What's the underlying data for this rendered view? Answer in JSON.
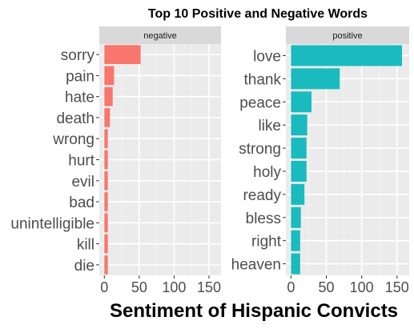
{
  "chart_data": {
    "type": "bar",
    "orientation": "horizontal",
    "title": "Top 10 Positive and Negative Words",
    "xlabel": "Sentiment of Hispanic Convicts",
    "ylabel": "",
    "xlim": [
      0,
      160
    ],
    "xticks": [
      "0",
      "50",
      "100",
      "150"
    ],
    "grid": true,
    "legend": "none",
    "panels": [
      {
        "name": "negative",
        "color": "#F8766D",
        "categories": [
          "sorry",
          "pain",
          "hate",
          "death",
          "wrong",
          "hurt",
          "evil",
          "bad",
          "unintelligible",
          "kill",
          "die"
        ],
        "values": [
          52,
          14,
          12,
          8,
          5,
          5,
          5,
          5,
          5,
          5,
          5
        ]
      },
      {
        "name": "positive",
        "color": "#1ABBBF",
        "categories": [
          "love",
          "thank",
          "peace",
          "like",
          "strong",
          "holy",
          "ready",
          "bless",
          "right",
          "heaven"
        ],
        "values": [
          157,
          69,
          29,
          23,
          22,
          22,
          19,
          14,
          13,
          13
        ]
      }
    ]
  }
}
